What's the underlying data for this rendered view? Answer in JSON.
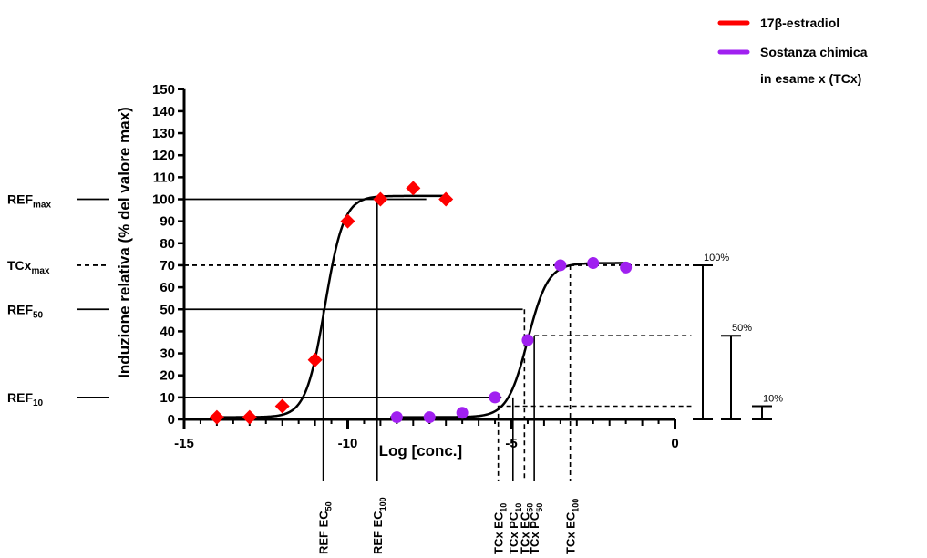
{
  "chart_data": {
    "type": "scatter",
    "xlabel": "Log [conc.]",
    "ylabel": "Induzione relativa (% del valore max)",
    "xlim": [
      -15,
      0
    ],
    "ylim": [
      0,
      150
    ],
    "x_ticks": [
      "-15",
      "-10",
      "-5",
      "0"
    ],
    "y_ticks": [
      "0",
      "10",
      "20",
      "30",
      "40",
      "50",
      "60",
      "70",
      "80",
      "90",
      "100",
      "110",
      "120",
      "130",
      "140",
      "150"
    ],
    "series": [
      {
        "name": "17β-estradiol",
        "color": "#ff0000",
        "marker": "diamond",
        "x": [
          -14,
          -13,
          -12,
          -11,
          -10,
          -9,
          -8,
          -7
        ],
        "y": [
          1,
          1,
          6,
          27,
          90,
          100,
          105,
          100
        ],
        "fit": {
          "bottom": 1,
          "top": 101.5,
          "log_ec50": -10.7,
          "hill": 1.5
        }
      },
      {
        "name": "Sostanza chimica in esame x (TCx)",
        "color": "#a020f0",
        "marker": "circle",
        "x": [
          -8.5,
          -7.5,
          -6.5,
          -5.5,
          -4.5,
          -3.5,
          -2.5,
          -1.5
        ],
        "y": [
          1,
          1,
          3,
          10,
          36,
          70,
          71,
          69
        ],
        "fit": {
          "bottom": 1,
          "top": 71,
          "log_ec50": -4.5,
          "hill": 1.4
        }
      }
    ],
    "legend": {
      "placement": "top-right",
      "entries": [
        {
          "line1": "17β-estradiol",
          "line2": "",
          "color": "#ff0000"
        },
        {
          "line1": "Sostanza chimica",
          "line2": "in esame x (TCx)",
          "color": "#a020f0"
        }
      ]
    },
    "reference_lines": [
      {
        "y": 100,
        "style": "solid",
        "label": "REF",
        "sub": "max",
        "to_x": -7.6
      },
      {
        "y": 70,
        "style": "dashed",
        "label": "TCx",
        "sub": "max",
        "to_x": 0.9
      },
      {
        "y": 50,
        "style": "solid",
        "label": "REF",
        "sub": "50",
        "to_x": -4.65
      },
      {
        "y": 10,
        "style": "solid",
        "label": "REF",
        "sub": "10",
        "to_x": -5.3
      }
    ],
    "vertical_markers": [
      {
        "x": -10.75,
        "y": 50,
        "style": "solid",
        "text": "REF EC",
        "sub": "50"
      },
      {
        "x": -9.1,
        "y": 100,
        "style": "solid",
        "text": "REF EC",
        "sub": "100"
      },
      {
        "x": -5.4,
        "y": 10,
        "style": "dashed",
        "text": "TCx  EC",
        "sub": "10"
      },
      {
        "x": -4.95,
        "y": 10,
        "style": "solid",
        "text": "TCx  PC",
        "sub": "10"
      },
      {
        "x": -4.6,
        "y": 50,
        "style": "dashed",
        "text": "TCx  EC",
        "sub": "50"
      },
      {
        "x": -4.3,
        "y": 38,
        "style": "solid",
        "text": "TCx  PC",
        "sub": "50"
      },
      {
        "x": -3.2,
        "y": 70,
        "style": "dashed",
        "text": "TCx  EC",
        "sub": "100"
      }
    ],
    "percent_brackets": [
      {
        "label": "100%",
        "top": 70,
        "bottom": 0
      },
      {
        "label": "50%",
        "top": 38,
        "bottom": 0
      },
      {
        "label": "10%",
        "top": 6,
        "bottom": 0
      }
    ],
    "guide_lines": [
      {
        "y": 38,
        "from_x": -4.3,
        "style": "dashed"
      },
      {
        "y": 6,
        "from_x": -5.4,
        "style": "dashed"
      }
    ]
  }
}
